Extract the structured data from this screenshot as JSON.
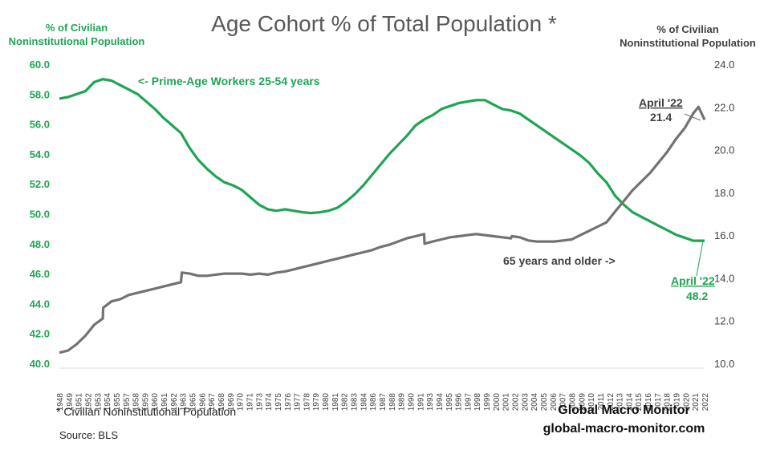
{
  "title": "Age Cohort % of Total Population *",
  "left_axis_label": "% of Civilian Noninstitutional Population",
  "right_axis_label": "% of Civilian Noninstitutional Population",
  "footnote": "* Civilian Noninstitutional Population",
  "source": "Source:  BLS",
  "brand_name": "Global Macro Monitor",
  "brand_url": "global-macro-monitor.com",
  "colors": {
    "prime_age": "#1ea553",
    "older": "#767171"
  },
  "chart_data": {
    "type": "line",
    "x_range": [
      1948,
      2022.3
    ],
    "xticks": [
      "1948",
      "1949",
      "1951",
      "1952",
      "1953",
      "1954",
      "1955",
      "1957",
      "1958",
      "1959",
      "1960",
      "1961",
      "1962",
      "1963",
      "1965",
      "1966",
      "1967",
      "1968",
      "1969",
      "1970",
      "1971",
      "1973",
      "1974",
      "1975",
      "1976",
      "1977",
      "1978",
      "1979",
      "1980",
      "1981",
      "1982",
      "1983",
      "1984",
      "1986",
      "1987",
      "1988",
      "1989",
      "1990",
      "1991",
      "1993",
      "1994",
      "1995",
      "1996",
      "1997",
      "1998",
      "1999",
      "2000",
      "2001",
      "2002",
      "2003",
      "2004",
      "2005",
      "2006",
      "2007",
      "2008",
      "2009",
      "2010",
      "2011",
      "2012",
      "2013",
      "2014",
      "2015",
      "2016",
      "2017",
      "2018",
      "2019",
      "2020",
      "2021",
      "2022"
    ],
    "y_left": {
      "range": [
        40,
        60
      ],
      "ticks": [
        "40.0",
        "42.0",
        "44.0",
        "46.0",
        "48.0",
        "50.0",
        "52.0",
        "54.0",
        "56.0",
        "58.0",
        "60.0"
      ]
    },
    "y_right": {
      "range": [
        10,
        24
      ],
      "ticks": [
        "10.0",
        "12.0",
        "14.0",
        "16.0",
        "18.0",
        "20.0",
        "22.0",
        "24.0"
      ]
    },
    "series": [
      {
        "name": "Prime-Age Workers 25-54 years",
        "axis": "left",
        "points": [
          [
            1948,
            57.7
          ],
          [
            1949,
            57.8
          ],
          [
            1950,
            58.0
          ],
          [
            1951,
            58.2
          ],
          [
            1952,
            58.8
          ],
          [
            1953,
            59.0
          ],
          [
            1954,
            58.9
          ],
          [
            1955,
            58.6
          ],
          [
            1956,
            58.3
          ],
          [
            1957,
            58.0
          ],
          [
            1958,
            57.5
          ],
          [
            1959,
            57.0
          ],
          [
            1960,
            56.4
          ],
          [
            1961,
            55.9
          ],
          [
            1962,
            55.4
          ],
          [
            1963,
            54.4
          ],
          [
            1964,
            53.6
          ],
          [
            1965,
            53.0
          ],
          [
            1966,
            52.5
          ],
          [
            1967,
            52.1
          ],
          [
            1968,
            51.9
          ],
          [
            1969,
            51.6
          ],
          [
            1970,
            51.1
          ],
          [
            1971,
            50.6
          ],
          [
            1972,
            50.3
          ],
          [
            1973,
            50.2
          ],
          [
            1974,
            50.3
          ],
          [
            1975,
            50.2
          ],
          [
            1976,
            50.1
          ],
          [
            1977,
            50.05
          ],
          [
            1978,
            50.1
          ],
          [
            1979,
            50.2
          ],
          [
            1980,
            50.4
          ],
          [
            1981,
            50.8
          ],
          [
            1982,
            51.3
          ],
          [
            1983,
            51.9
          ],
          [
            1984,
            52.6
          ],
          [
            1985,
            53.3
          ],
          [
            1986,
            54.0
          ],
          [
            1987,
            54.6
          ],
          [
            1988,
            55.2
          ],
          [
            1989,
            55.9
          ],
          [
            1990,
            56.3
          ],
          [
            1991,
            56.6
          ],
          [
            1992,
            57.0
          ],
          [
            1993,
            57.2
          ],
          [
            1994,
            57.4
          ],
          [
            1995,
            57.5
          ],
          [
            1996,
            57.6
          ],
          [
            1997,
            57.6
          ],
          [
            1998,
            57.3
          ],
          [
            1999,
            57.0
          ],
          [
            2000,
            56.9
          ],
          [
            2001,
            56.7
          ],
          [
            2002,
            56.3
          ],
          [
            2003,
            55.9
          ],
          [
            2004,
            55.5
          ],
          [
            2005,
            55.1
          ],
          [
            2006,
            54.7
          ],
          [
            2007,
            54.3
          ],
          [
            2008,
            53.9
          ],
          [
            2009,
            53.4
          ],
          [
            2010,
            52.7
          ],
          [
            2011,
            52.1
          ],
          [
            2012,
            51.2
          ],
          [
            2013,
            50.6
          ],
          [
            2014,
            50.1
          ],
          [
            2015,
            49.8
          ],
          [
            2016,
            49.5
          ],
          [
            2017,
            49.2
          ],
          [
            2018,
            48.9
          ],
          [
            2019,
            48.6
          ],
          [
            2020,
            48.4
          ],
          [
            2021,
            48.2
          ],
          [
            2022.3,
            48.2
          ]
        ]
      },
      {
        "name": "65 years and older",
        "axis": "right",
        "points": [
          [
            1948,
            10.5
          ],
          [
            1949,
            10.6
          ],
          [
            1950,
            10.9
          ],
          [
            1951,
            11.3
          ],
          [
            1952,
            11.8
          ],
          [
            1953,
            12.1
          ],
          [
            1953.05,
            12.6
          ],
          [
            1954,
            12.9
          ],
          [
            1955,
            13.0
          ],
          [
            1956,
            13.2
          ],
          [
            1957,
            13.3
          ],
          [
            1958,
            13.4
          ],
          [
            1959,
            13.5
          ],
          [
            1960,
            13.6
          ],
          [
            1961,
            13.7
          ],
          [
            1962,
            13.8
          ],
          [
            1962.1,
            14.25
          ],
          [
            1963,
            14.2
          ],
          [
            1964,
            14.1
          ],
          [
            1965,
            14.1
          ],
          [
            1966,
            14.15
          ],
          [
            1967,
            14.2
          ],
          [
            1968,
            14.2
          ],
          [
            1969,
            14.2
          ],
          [
            1970,
            14.15
          ],
          [
            1971,
            14.2
          ],
          [
            1972,
            14.15
          ],
          [
            1973,
            14.25
          ],
          [
            1974,
            14.3
          ],
          [
            1975,
            14.4
          ],
          [
            1976,
            14.5
          ],
          [
            1977,
            14.6
          ],
          [
            1978,
            14.7
          ],
          [
            1979,
            14.8
          ],
          [
            1980,
            14.9
          ],
          [
            1981,
            15.0
          ],
          [
            1982,
            15.1
          ],
          [
            1983,
            15.2
          ],
          [
            1984,
            15.3
          ],
          [
            1985,
            15.45
          ],
          [
            1986,
            15.55
          ],
          [
            1987,
            15.7
          ],
          [
            1988,
            15.85
          ],
          [
            1989,
            15.95
          ],
          [
            1990,
            16.05
          ],
          [
            1990.05,
            15.6
          ],
          [
            1991,
            15.7
          ],
          [
            1992,
            15.8
          ],
          [
            1993,
            15.9
          ],
          [
            1994,
            15.95
          ],
          [
            1995,
            16.0
          ],
          [
            1996,
            16.05
          ],
          [
            1997,
            16.0
          ],
          [
            1998,
            15.95
          ],
          [
            1999,
            15.9
          ],
          [
            2000,
            15.85
          ],
          [
            2000.1,
            15.95
          ],
          [
            2001,
            15.9
          ],
          [
            2002,
            15.75
          ],
          [
            2003,
            15.7
          ],
          [
            2004,
            15.7
          ],
          [
            2005,
            15.7
          ],
          [
            2006,
            15.75
          ],
          [
            2007,
            15.8
          ],
          [
            2008,
            16.0
          ],
          [
            2009,
            16.2
          ],
          [
            2010,
            16.4
          ],
          [
            2011,
            16.6
          ],
          [
            2012,
            17.1
          ],
          [
            2013,
            17.6
          ],
          [
            2014,
            18.1
          ],
          [
            2015,
            18.5
          ],
          [
            2016,
            18.9
          ],
          [
            2017,
            19.4
          ],
          [
            2018,
            19.9
          ],
          [
            2019,
            20.5
          ],
          [
            2020,
            21.0
          ],
          [
            2021,
            21.7
          ],
          [
            2021.6,
            22.0
          ],
          [
            2022.3,
            21.4
          ]
        ]
      }
    ],
    "annotations": [
      {
        "text": "<- Prime-Age Workers  25-54 years",
        "color": "#1ea553"
      },
      {
        "text": "65 years and older ->",
        "color": "#404040"
      },
      {
        "label": "April '22",
        "value": "21.4",
        "color": "#404040"
      },
      {
        "label": "April '22",
        "value": "48.2",
        "color": "#1ea553"
      }
    ],
    "grid": false,
    "legend": "none"
  }
}
